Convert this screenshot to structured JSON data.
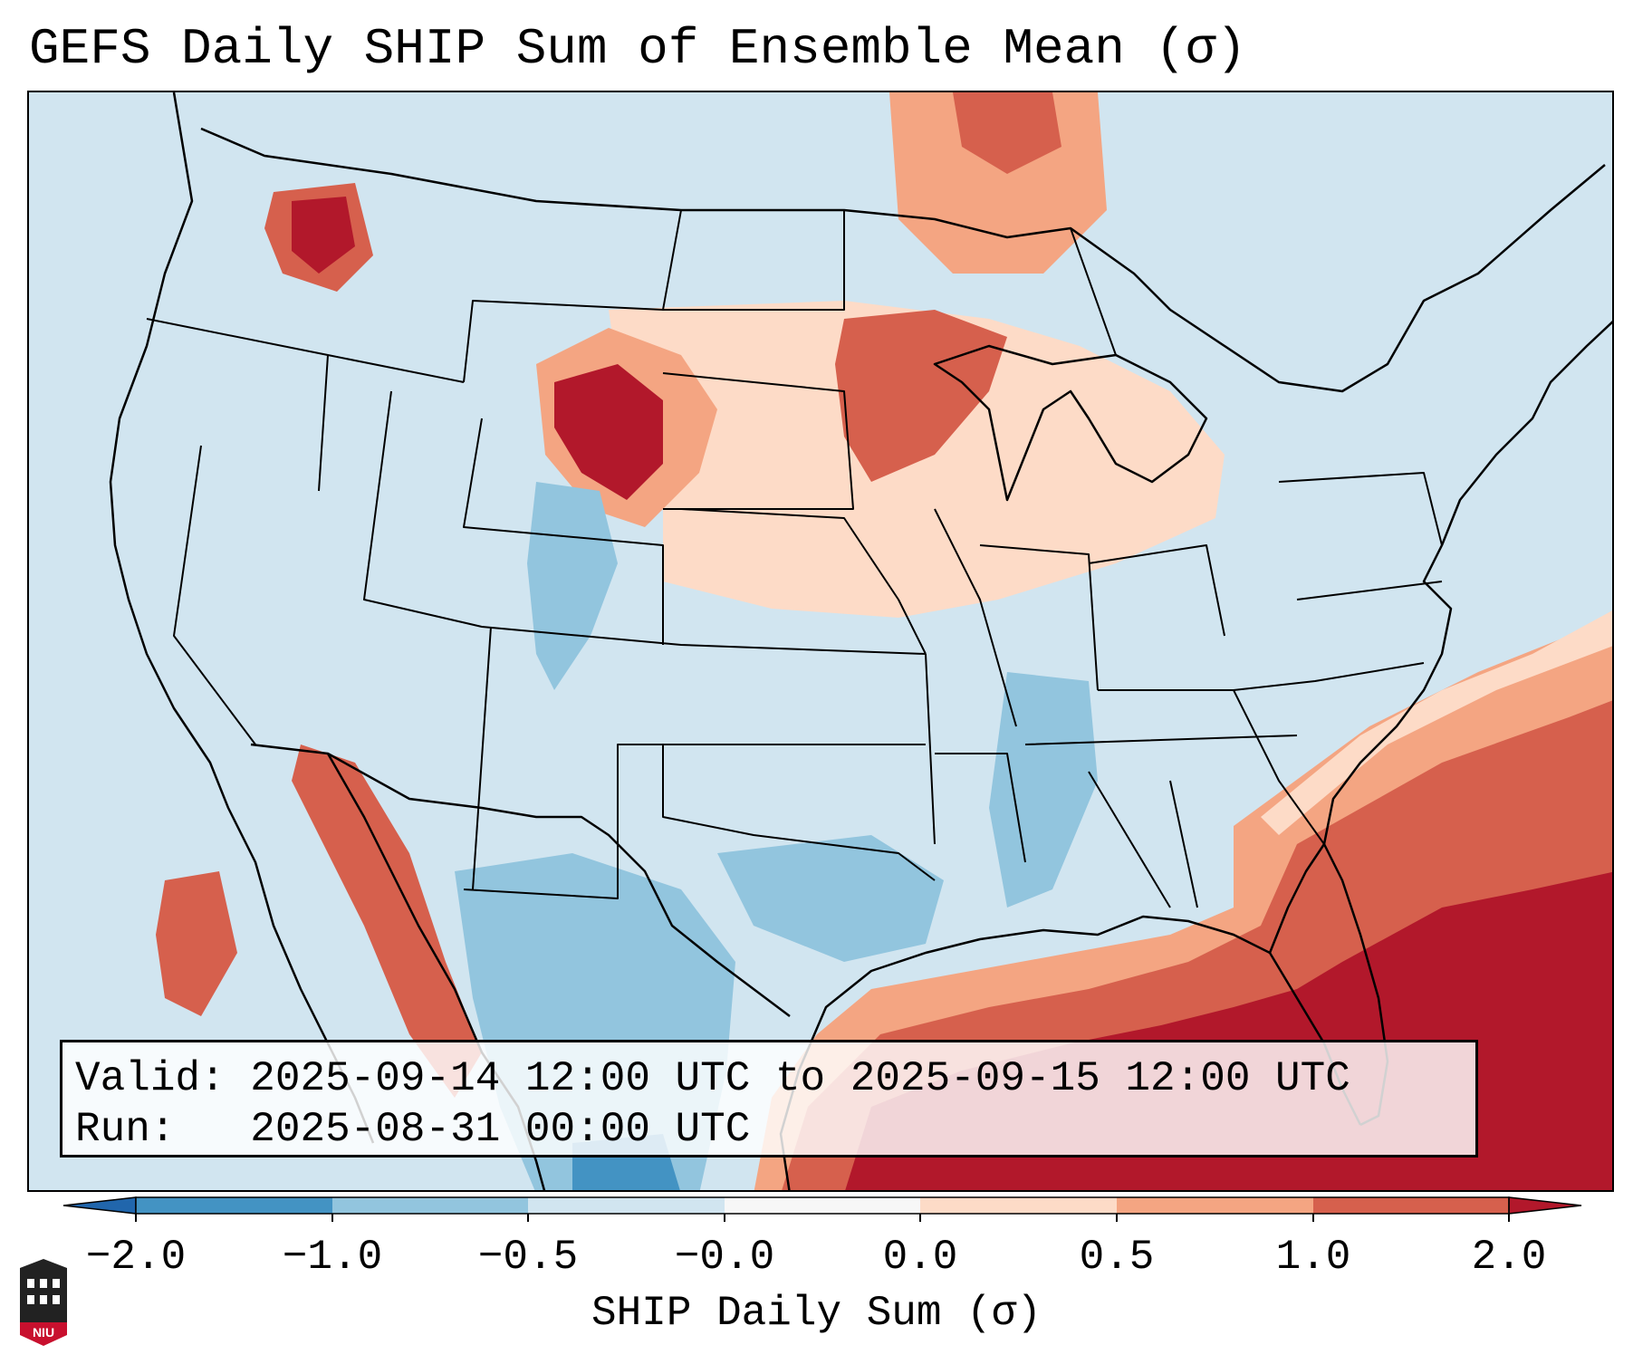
{
  "title": "GEFS Daily SHIP Sum of Ensemble Mean (σ)",
  "map": {
    "ocean_color": "#d1e5f0",
    "border_color": "#000000",
    "region": "CONUS"
  },
  "info": {
    "valid_label": "Valid:",
    "valid_value": "2025-09-14 12:00 UTC to 2025-09-15 12:00 UTC",
    "run_label": "Run:",
    "run_value": "2025-08-31 00:00 UTC"
  },
  "colorbar": {
    "label": "SHIP Daily Sum (σ)",
    "ticks": [
      "−2.0",
      "−1.0",
      "−0.5",
      "−0.0",
      "0.0",
      "0.5",
      "1.0",
      "2.0"
    ],
    "colors": [
      "#2166ac",
      "#4393c3",
      "#92c5de",
      "#d1e5f0",
      "#f7f7f7",
      "#fddbc7",
      "#f4a582",
      "#d6604d",
      "#b2182b"
    ],
    "extend": "both"
  },
  "logo": {
    "text": "NIU",
    "icon": "niu-logo-icon"
  }
}
